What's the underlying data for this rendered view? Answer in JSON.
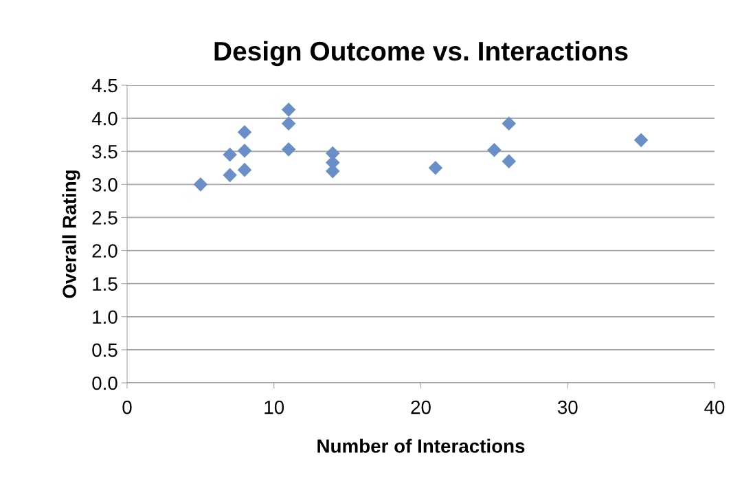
{
  "chart_data": {
    "type": "scatter",
    "title": "Design Outcome vs. Interactions",
    "xlabel": "Number of Interactions",
    "ylabel": "Overall Rating",
    "x": [
      5,
      7,
      7,
      8,
      8,
      8,
      11,
      11,
      11,
      14,
      14,
      14,
      21,
      25,
      26,
      26,
      35
    ],
    "series": [
      {
        "color": "#6a8fc8",
        "values": [
          3.0,
          3.45,
          3.14,
          3.79,
          3.51,
          3.22,
          4.13,
          3.92,
          3.53,
          3.47,
          3.33,
          3.2,
          3.25,
          3.52,
          3.92,
          3.35,
          3.67
        ]
      }
    ],
    "xlim": [
      0,
      40
    ],
    "xticks": [
      0,
      10,
      20,
      30,
      40
    ],
    "ylim": [
      0,
      4.5
    ],
    "yticks": [
      {
        "value": 0,
        "label": "0.0"
      },
      {
        "value": 0.5,
        "label": "0.5"
      },
      {
        "value": 1,
        "label": "1.0"
      },
      {
        "value": 1.5,
        "label": "1.5"
      },
      {
        "value": 2,
        "label": "2.0"
      },
      {
        "value": 2.5,
        "label": "2.5"
      },
      {
        "value": 3,
        "label": "3.0"
      },
      {
        "value": 3.5,
        "label": "3.5"
      },
      {
        "value": 4,
        "label": "4.0"
      },
      {
        "value": 4.5,
        "label": "4.5"
      }
    ],
    "grid": "y",
    "marker": "diamond"
  }
}
